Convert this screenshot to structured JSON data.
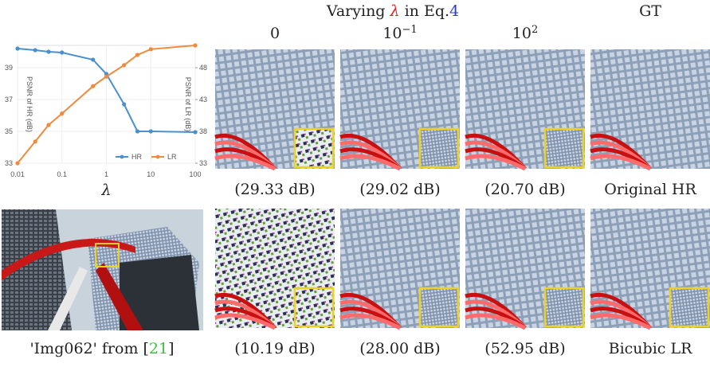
{
  "chart_data": {
    "type": "line",
    "x": [
      0.01,
      0.025,
      0.05,
      0.1,
      0.5,
      1,
      2.5,
      5,
      10,
      100
    ],
    "xscale": "log",
    "xlim": [
      0.01,
      100
    ],
    "xticks": [
      0.01,
      0.1,
      1,
      10,
      100
    ],
    "xlabel": "λ",
    "xlabel_color": "#e0201b",
    "ylabel": "PSNR of HR (dB)",
    "ylim": [
      33,
      40.4
    ],
    "yticks": [
      33,
      35,
      37,
      39
    ],
    "y2label": "PSNR of LR (dB)",
    "y2lim": [
      33,
      51.5
    ],
    "y2ticks": [
      33,
      38,
      43,
      48
    ],
    "grid": true,
    "legend": "lower right",
    "series": [
      {
        "name": "HR",
        "color": "#4a90d0",
        "values": [
          40.2,
          40.1,
          40.0,
          39.95,
          39.5,
          38.6,
          36.7,
          35.0,
          35.0,
          34.95
        ]
      },
      {
        "name": "LR",
        "color": "#f08a3c",
        "axis": "y2",
        "values": [
          33,
          36.4,
          39,
          40.8,
          45.1,
          46.6,
          48.4,
          50,
          50.9,
          51.5
        ]
      }
    ]
  },
  "figure": {
    "header": {
      "prefix": "Varying ",
      "symbol": "λ",
      "suffix": " in Eq.",
      "ref": "4"
    },
    "columns": [
      {
        "base": "0"
      },
      {
        "base": "10",
        "exp": "−1"
      },
      {
        "base": "10",
        "exp": "2"
      },
      {
        "base": "GT"
      }
    ],
    "rows": [
      [
        "(29.33 dB)",
        "(29.02 dB)",
        "(20.70 dB)",
        "Original HR"
      ],
      [
        "(10.19 dB)",
        "(28.00 dB)",
        "(52.95 dB)",
        "Bicubic LR"
      ]
    ],
    "image_caption": {
      "prefix": "'Img062' from [",
      "ref": "21",
      "suffix": "]"
    }
  }
}
